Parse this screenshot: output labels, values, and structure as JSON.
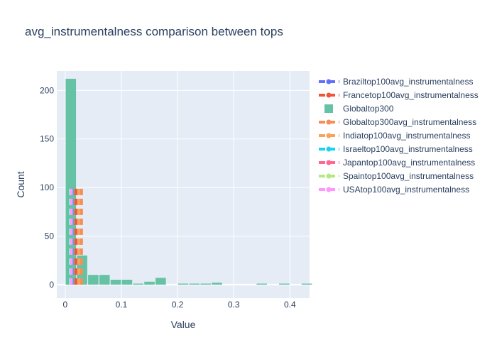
{
  "chart_data": {
    "type": "bar",
    "title": "avg_instrumentalness comparison between tops",
    "xlabel": "Value",
    "ylabel": "Count",
    "xlim": [
      -0.015,
      0.435
    ],
    "ylim": [
      -14,
      220
    ],
    "x_ticks": [
      {
        "value": 0,
        "label": "0"
      },
      {
        "value": 0.1,
        "label": "0.1"
      },
      {
        "value": 0.2,
        "label": "0.2"
      },
      {
        "value": 0.3,
        "label": "0.3"
      },
      {
        "value": 0.4,
        "label": "0.4"
      }
    ],
    "y_ticks": [
      {
        "value": 0,
        "label": "0"
      },
      {
        "value": 50,
        "label": "50"
      },
      {
        "value": 100,
        "label": "100"
      },
      {
        "value": 150,
        "label": "150"
      },
      {
        "value": 200,
        "label": "200"
      }
    ],
    "grid": true,
    "legend_position": "right",
    "histogram": {
      "name": "Globaltop300",
      "color": "#66c2a5",
      "bin_width": 0.02,
      "bins": [
        {
          "x0": 0.0,
          "count": 212
        },
        {
          "x0": 0.02,
          "count": 30
        },
        {
          "x0": 0.04,
          "count": 10
        },
        {
          "x0": 0.06,
          "count": 10
        },
        {
          "x0": 0.08,
          "count": 5
        },
        {
          "x0": 0.1,
          "count": 5
        },
        {
          "x0": 0.12,
          "count": 1
        },
        {
          "x0": 0.14,
          "count": 3
        },
        {
          "x0": 0.16,
          "count": 7
        },
        {
          "x0": 0.2,
          "count": 1
        },
        {
          "x0": 0.22,
          "count": 1
        },
        {
          "x0": 0.24,
          "count": 1
        },
        {
          "x0": 0.26,
          "count": 2
        },
        {
          "x0": 0.34,
          "count": 1
        },
        {
          "x0": 0.38,
          "count": 1
        },
        {
          "x0": 0.42,
          "count": 1
        }
      ]
    },
    "vlines": [
      {
        "name": "Braziltop100avg_instrumentalness",
        "x": 0.012,
        "color": "#636efa"
      },
      {
        "name": "Francetop100avg_instrumentalness",
        "x": 0.019,
        "color": "#ef553b"
      },
      {
        "name": "Globaltop300avg_instrumentalness",
        "x": 0.029,
        "color": "#f58d57"
      },
      {
        "name": "Indiatop100avg_instrumentalness",
        "x": 0.024,
        "color": "#f8a35c"
      },
      {
        "name": "Israeltop100avg_instrumentalness",
        "x": 0.008,
        "color": "#19d3f3"
      },
      {
        "name": "Japantop100avg_instrumentalness",
        "x": 0.01,
        "color": "#ff6692"
      },
      {
        "name": "Spaintop100avg_instrumentalness",
        "x": 0.009,
        "color": "#b6e880"
      },
      {
        "name": "USAtop100avg_instrumentalness",
        "x": 0.011,
        "color": "#ff97ff"
      }
    ],
    "vline_height": 101,
    "legend_order": [
      "Braziltop100avg_instrumentalness",
      "Francetop100avg_instrumentalness",
      "Globaltop300",
      "Globaltop300avg_instrumentalness",
      "Indiatop100avg_instrumentalness",
      "Israeltop100avg_instrumentalness",
      "Japantop100avg_instrumentalness",
      "Spaintop100avg_instrumentalness",
      "USAtop100avg_instrumentalness"
    ]
  }
}
